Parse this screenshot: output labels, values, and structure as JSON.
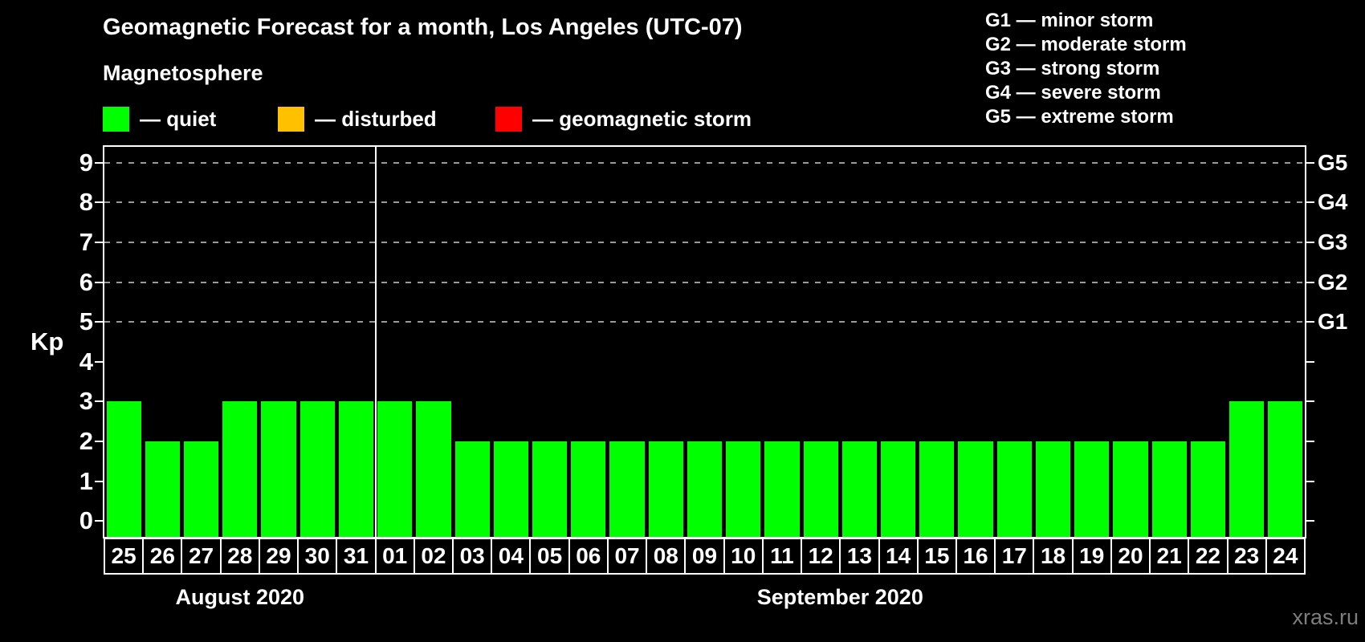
{
  "title": "Geomagnetic Forecast for a month, Los Angeles (UTC-07)",
  "subtitle": "Magnetosphere",
  "legend": {
    "items": [
      {
        "name": "quiet",
        "color": "#00ff00",
        "label": "— quiet"
      },
      {
        "name": "disturbed",
        "color": "#ffc000",
        "label": "— disturbed"
      },
      {
        "name": "storm",
        "color": "#ff0000",
        "label": "— geomagnetic storm"
      }
    ]
  },
  "g_legend": [
    "G1 — minor storm",
    "G2 — moderate storm",
    "G3 — strong storm",
    "G4 — severe storm",
    "G5 — extreme storm"
  ],
  "watermark": "xras.ru",
  "chart_data": {
    "type": "bar",
    "title": "Geomagnetic Forecast for a month, Los Angeles (UTC-07)",
    "ylabel": "Kp",
    "ylim": [
      -0.4,
      9.4
    ],
    "yticks": [
      0,
      1,
      2,
      3,
      4,
      5,
      6,
      7,
      8,
      9
    ],
    "grid_kp": [
      5,
      6,
      7,
      8,
      9
    ],
    "right_labels": [
      {
        "label": "G1",
        "kp": 5
      },
      {
        "label": "G2",
        "kp": 6
      },
      {
        "label": "G3",
        "kp": 7
      },
      {
        "label": "G4",
        "kp": 8
      },
      {
        "label": "G5",
        "kp": 9
      }
    ],
    "bar_color": "#00ff00",
    "grid_on": true,
    "categories": [
      "25",
      "26",
      "27",
      "28",
      "29",
      "30",
      "31",
      "01",
      "02",
      "03",
      "04",
      "05",
      "06",
      "07",
      "08",
      "09",
      "10",
      "11",
      "12",
      "13",
      "14",
      "15",
      "16",
      "17",
      "18",
      "19",
      "20",
      "21",
      "22",
      "23",
      "24"
    ],
    "values": [
      3,
      2,
      2,
      3,
      3,
      3,
      3,
      3,
      3,
      2,
      2,
      2,
      2,
      2,
      2,
      2,
      2,
      2,
      2,
      2,
      2,
      2,
      2,
      2,
      2,
      2,
      2,
      2,
      2,
      3,
      3
    ],
    "month_groups": [
      {
        "label": "August 2020",
        "days": 7
      },
      {
        "label": "September 2020",
        "days": 24
      }
    ]
  }
}
